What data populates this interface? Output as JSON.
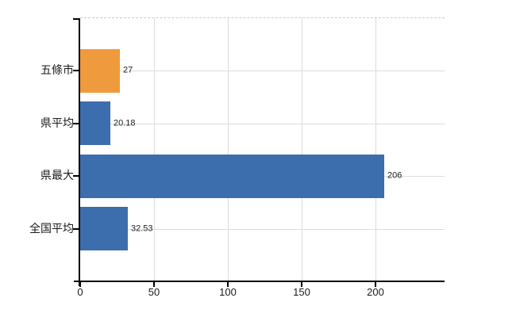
{
  "chart_data": {
    "type": "bar",
    "orientation": "horizontal",
    "title": "",
    "xlabel": "",
    "ylabel": "",
    "categories": [
      "五條市",
      "県平均",
      "県最大",
      "全国平均"
    ],
    "values": [
      27,
      20.18,
      206,
      32.53
    ],
    "value_labels": [
      "27",
      "20.18",
      "206",
      "32.53"
    ],
    "bar_colors": [
      "#F09A3E",
      "#3C6DAD",
      "#3C6DAD",
      "#3C6DAD"
    ],
    "xticks": [
      0,
      50,
      100,
      150,
      200
    ],
    "xtick_labels": [
      "0",
      "50",
      "100",
      "150",
      "200"
    ],
    "xlim": [
      0,
      247
    ],
    "grid": "on",
    "legend": "none"
  },
  "colors": {
    "background": "#FFFFFF",
    "axis": "#000000",
    "gridline": "#DCDCDC",
    "plot_top_border": "#C9C9C9",
    "bar_orange": "#F09A3E",
    "bar_blue": "#3C6DAD",
    "category_label": "#1A1A1A",
    "tick_label": "#1A1A1A",
    "value_label": "#222222"
  }
}
